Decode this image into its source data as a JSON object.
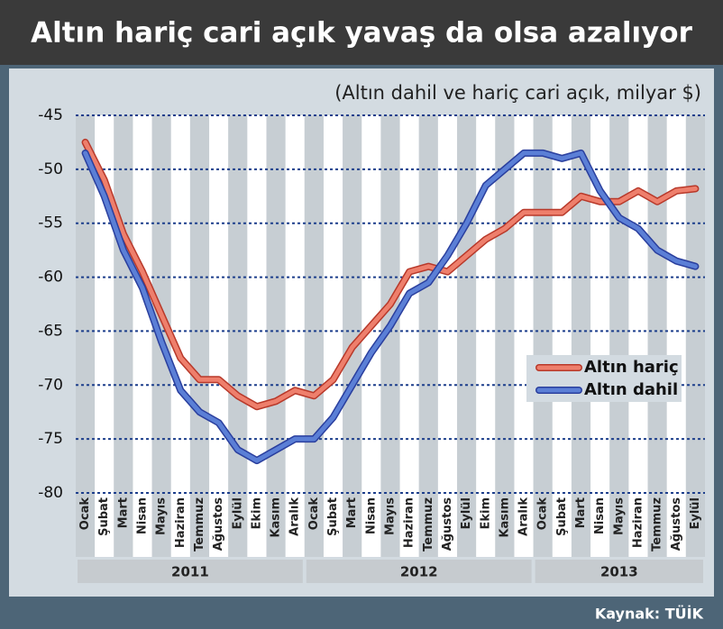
{
  "chart_data": {
    "type": "line",
    "title": "Altın hariç cari açık yavaş da olsa azalıyor",
    "subtitle": "(Altın dahil ve hariç cari açık, milyar $)",
    "source": "Kaynak: TÜİK",
    "categories": [
      "Ocak",
      "Şubat",
      "Mart",
      "Nisan",
      "Mayıs",
      "Haziran",
      "Temmuz",
      "Ağustos",
      "Eylül",
      "Ekim",
      "Kasım",
      "Aralık",
      "Ocak",
      "Şubat",
      "Mart",
      "Nisan",
      "Mayıs",
      "Haziran",
      "Temmuz",
      "Ağustos",
      "Eylül",
      "Ekim",
      "Kasım",
      "Aralık",
      "Ocak",
      "Şubat",
      "Mart",
      "Nisan",
      "Mayıs",
      "Haziran",
      "Temmuz",
      "Ağustos",
      "Eylül"
    ],
    "years": [
      "2011",
      "2012",
      "2013"
    ],
    "series": [
      {
        "name": "Altın hariç",
        "color": "#ee7f6c",
        "values": [
          -47.5,
          -51,
          -56,
          -59.5,
          -63.5,
          -67.5,
          -69.5,
          -69.5,
          -71,
          -72,
          -71.5,
          -70.5,
          -71,
          -69.5,
          -66.5,
          -64.5,
          -62.5,
          -59.5,
          -59,
          -59.5,
          -58,
          -56.5,
          -55.5,
          -54,
          -54,
          -54,
          -52.5,
          -53,
          -53,
          -52,
          -53,
          -52,
          -51.8
        ]
      },
      {
        "name": "Altın dahil",
        "color": "#5b7fd6",
        "values": [
          -48.5,
          -52.5,
          -57.5,
          -61,
          -66,
          -70.5,
          -72.5,
          -73.5,
          -76,
          -77,
          -76,
          -75,
          -75,
          -73,
          -70,
          -67,
          -64.5,
          -61.5,
          -60.5,
          -58,
          -55,
          -51.5,
          -50,
          -48.5,
          -48.5,
          -49,
          -48.5,
          -52,
          -54.5,
          -55.5,
          -57.5,
          -58.5,
          -59
        ]
      }
    ],
    "ylim": [
      -80,
      -45
    ],
    "yticks": [
      -45,
      -50,
      -55,
      -60,
      -65,
      -70,
      -75,
      -80
    ],
    "grid": true
  }
}
